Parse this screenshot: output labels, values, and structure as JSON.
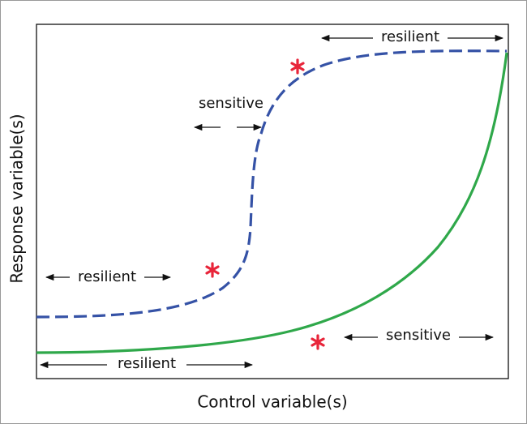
{
  "axes": {
    "x_label": "Control variable(s)",
    "y_label": "Response variable(s)"
  },
  "annotations": [
    "resilient",
    "sensitive",
    "resilient",
    "resilient",
    "sensitive"
  ]
}
